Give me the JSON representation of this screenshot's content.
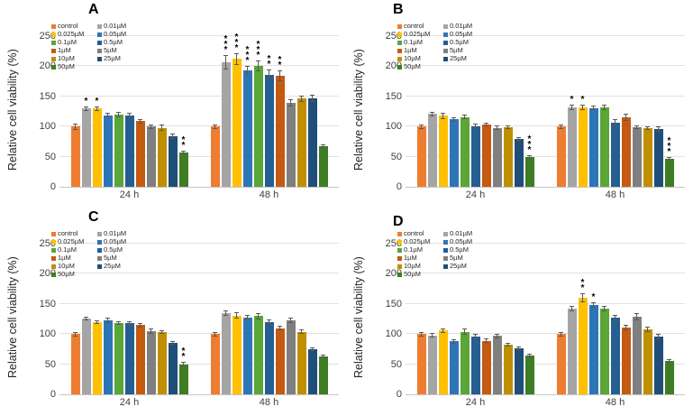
{
  "figure_title": "",
  "chart_data": {
    "type": "bar",
    "ylabel": "Relative cell viability (%)",
    "ylim": [
      0,
      250
    ],
    "yticks": [
      0,
      50,
      100,
      150,
      200,
      250
    ],
    "groups": [
      "24 h",
      "48 h"
    ],
    "grid": true,
    "legend_position": "upper-left-inside",
    "legend_columns": 2,
    "series_labels": [
      "control",
      "0.01µM",
      "0.025µM",
      "0.05µM",
      "0.1µM",
      "0.5µM",
      "1µM",
      "5µM",
      "10µM",
      "25µM",
      "50µM"
    ],
    "series_colors": [
      "#ED7D31",
      "#A5A5A5",
      "#FFC000",
      "#2E75B6",
      "#5AA637",
      "#255E91",
      "#C55A11",
      "#7F7F7F",
      "#BF8F00",
      "#1F4E79",
      "#3E7D23"
    ],
    "error_bar_color": "#595959",
    "panels": [
      {
        "label": "A",
        "groups": [
          {
            "name": "24 h",
            "values": [
              100,
              130,
              130,
              119,
              120,
              119,
              109,
              100,
              98,
              84,
              57
            ],
            "errors": [
              5,
              4,
              4,
              4,
              4,
              4,
              4,
              4,
              5,
              4,
              3
            ],
            "sig": [
              "",
              "*",
              "*",
              "",
              "",
              "",
              "",
              "",
              "",
              "",
              "**"
            ]
          },
          {
            "name": "48 h",
            "values": [
              100,
              206,
              212,
              193,
              200,
              186,
              184,
              139,
              146,
              146,
              67
            ],
            "errors": [
              4,
              12,
              10,
              8,
              9,
              8,
              9,
              6,
              5,
              6,
              3
            ],
            "sig": [
              "",
              "***",
              "***",
              "***",
              "***",
              "**",
              "**",
              "",
              "",
              "",
              ""
            ]
          }
        ]
      },
      {
        "label": "B",
        "groups": [
          {
            "name": "24 h",
            "values": [
              100,
              121,
              118,
              112,
              116,
              101,
              104,
              98,
              99,
              80,
              50
            ],
            "errors": [
              4,
              4,
              5,
              4,
              4,
              4,
              3,
              4,
              3,
              3,
              3
            ],
            "sig": [
              "",
              "",
              "",
              "",
              "",
              "",
              "",
              "",
              "",
              "",
              "***"
            ]
          },
          {
            "name": "48 h",
            "values": [
              100,
              132,
              132,
              131,
              132,
              107,
              115,
              99,
              98,
              96,
              47
            ],
            "errors": [
              4,
              4,
              4,
              4,
              5,
              5,
              6,
              3,
              3,
              4,
              3
            ],
            "sig": [
              "",
              "*",
              "*",
              "",
              "",
              "",
              "",
              "",
              "",
              "",
              "***"
            ]
          }
        ]
      },
      {
        "label": "C",
        "groups": [
          {
            "name": "24 h",
            "values": [
              100,
              126,
              120,
              123,
              119,
              118,
              115,
              105,
              103,
              86,
              50
            ],
            "errors": [
              4,
              3,
              3,
              5,
              3,
              4,
              4,
              4,
              3,
              3,
              4
            ],
            "sig": [
              "",
              "",
              "",
              "",
              "",
              "",
              "",
              "",
              "",
              "",
              "**"
            ]
          },
          {
            "name": "48 h",
            "values": [
              100,
              135,
              131,
              128,
              130,
              120,
              110,
              123,
              104,
              75,
              63
            ],
            "errors": [
              4,
              5,
              5,
              4,
              5,
              4,
              4,
              4,
              4,
              3,
              3
            ],
            "sig": [
              "",
              "",
              "",
              "",
              "",
              "",
              "",
              "",
              "",
              "",
              ""
            ]
          }
        ]
      },
      {
        "label": "D",
        "groups": [
          {
            "name": "24 h",
            "values": [
              100,
              98,
              106,
              88,
              104,
              96,
              89,
              97,
              82,
              77,
              65
            ],
            "errors": [
              4,
              4,
              4,
              4,
              5,
              4,
              4,
              4,
              3,
              3,
              3
            ],
            "sig": [
              "",
              "",
              "",
              "",
              "",
              "",
              "",
              "",
              "",
              "",
              ""
            ]
          },
          {
            "name": "48 h",
            "values": [
              100,
              142,
              160,
              148,
              142,
              127,
              111,
              129,
              108,
              96,
              56
            ],
            "errors": [
              4,
              5,
              7,
              5,
              5,
              5,
              5,
              6,
              5,
              4,
              3
            ],
            "sig": [
              "",
              "",
              "**",
              "*",
              "",
              "",
              "",
              "",
              "",
              "",
              ""
            ]
          }
        ]
      }
    ]
  }
}
